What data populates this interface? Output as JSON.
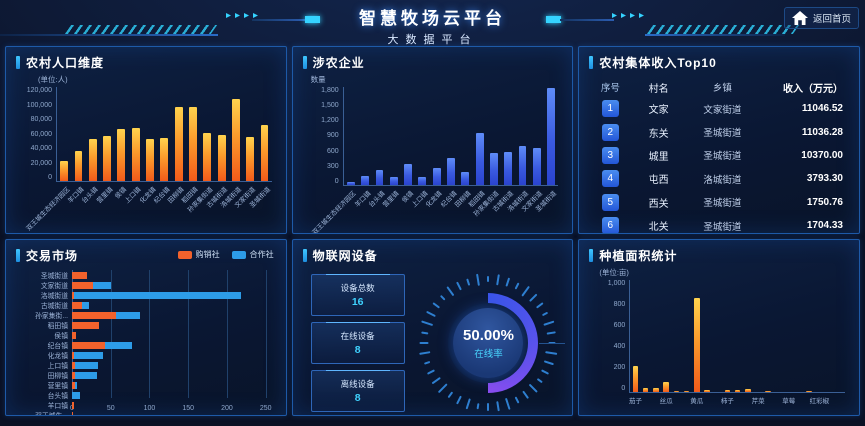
{
  "header": {
    "title": "智慧牧场云平台",
    "subtitle": "大数据平台",
    "home_label": "返回首页"
  },
  "panels": {
    "population": {
      "title": "农村人口维度",
      "unit": "(单位:人)"
    },
    "enterprises": {
      "title": "涉农企业",
      "y_label": "数量"
    },
    "income": {
      "title": "农村集体收入Top10",
      "columns": [
        "序号",
        "村名",
        "乡镇",
        "收入（万元）"
      ],
      "rows": [
        [
          "1",
          "文家",
          "文家街道",
          "11046.52"
        ],
        [
          "2",
          "东关",
          "圣城街道",
          "11036.28"
        ],
        [
          "3",
          "城里",
          "圣城街道",
          "10370.00"
        ],
        [
          "4",
          "屯西",
          "洛城街道",
          "3793.30"
        ],
        [
          "5",
          "西关",
          "圣城街道",
          "1750.76"
        ],
        [
          "6",
          "北关",
          "圣城街道",
          "1704.33"
        ]
      ]
    },
    "market": {
      "title": "交易市场"
    },
    "iot": {
      "title": "物联网设备",
      "stats": [
        {
          "label": "设备总数",
          "value": "16"
        },
        {
          "label": "在线设备",
          "value": "8"
        },
        {
          "label": "离线设备",
          "value": "8"
        }
      ],
      "gauge": {
        "percent": "50.00%",
        "label": "在线率"
      }
    },
    "planting": {
      "title": "种植面积统计",
      "unit": "(单位:亩)"
    }
  },
  "chart_data": [
    {
      "id": "population",
      "type": "bar",
      "title": "农村人口维度",
      "ylabel": "单位:人",
      "categories": [
        "双王城生态经济园区",
        "羊口镇",
        "台头镇",
        "营里镇",
        "侯镇",
        "上口镇",
        "化龙镇",
        "纪台镇",
        "田柳镇",
        "稻田镇",
        "孙家集街道",
        "古城街道",
        "洛城街道",
        "文家街道",
        "圣城街道"
      ],
      "values": [
        25000,
        38000,
        54000,
        58000,
        67000,
        68000,
        54000,
        55000,
        95000,
        95000,
        61000,
        59000,
        105000,
        56000,
        71000
      ],
      "ylim": [
        0,
        120000
      ],
      "yticks": [
        "120,000",
        "100,000",
        "80,000",
        "60,000",
        "40,000",
        "20,000",
        "0"
      ]
    },
    {
      "id": "enterprises",
      "type": "bar",
      "title": "涉农企业",
      "ylabel": "数量",
      "categories": [
        "双王城生态经济园区",
        "羊口镇",
        "台头镇",
        "营里镇",
        "侯镇",
        "上口镇",
        "化龙镇",
        "纪台镇",
        "田柳镇",
        "稻田镇",
        "孙家集街道",
        "古城街道",
        "洛城街道",
        "文家街道",
        "圣城街道"
      ],
      "values": [
        60,
        160,
        270,
        140,
        380,
        140,
        310,
        490,
        240,
        950,
        590,
        610,
        720,
        680,
        1780
      ],
      "ylim": [
        0,
        1800
      ],
      "yticks": [
        "1,800",
        "1,500",
        "1,200",
        "900",
        "600",
        "300",
        "0"
      ]
    },
    {
      "id": "market",
      "type": "bar-horizontal-stacked",
      "title": "交易市场",
      "categories": [
        "圣城街道",
        "文家街道",
        "洛城街道",
        "古城街道",
        "孙家集街...",
        "稻田镇",
        "侯镇",
        "纪台镇",
        "化龙镇",
        "上口镇",
        "田柳镇",
        "营里镇",
        "台头镇",
        "羊口镇",
        "双王城生..."
      ],
      "series": [
        {
          "name": "购销社",
          "color": "#f2622c",
          "values": [
            20,
            27,
            2,
            13,
            57,
            35,
            5,
            43,
            3,
            4,
            4,
            4,
            0,
            3,
            1
          ]
        },
        {
          "name": "合作社",
          "color": "#2d9ce8",
          "values": [
            0,
            23,
            216,
            9,
            31,
            0,
            0,
            35,
            37,
            30,
            28,
            2,
            10,
            0,
            0
          ]
        }
      ],
      "xlim": [
        0,
        250
      ],
      "xticks": [
        "0",
        "50",
        "100",
        "150",
        "200",
        "250"
      ],
      "legend_position": "top-right"
    },
    {
      "id": "planting",
      "type": "bar",
      "title": "种植面积统计",
      "ylabel": "单位:亩",
      "categories": [
        "茄子",
        "",
        "",
        "丝瓜",
        "",
        "",
        "黄瓜",
        "",
        "",
        "柿子",
        "",
        "",
        "芹菜",
        "",
        "",
        "草莓",
        "",
        "",
        "红彩椒",
        "",
        ""
      ],
      "values": [
        230,
        38,
        35,
        90,
        5,
        8,
        840,
        18,
        0,
        18,
        22,
        25,
        0,
        8,
        0,
        0,
        0,
        3,
        0,
        0,
        0
      ],
      "ylim": [
        0,
        1000
      ],
      "yticks": [
        "1,000",
        "800",
        "600",
        "400",
        "200",
        "0"
      ]
    },
    {
      "id": "iot_gauge",
      "type": "gauge",
      "value": 50,
      "max": 100,
      "center_value": "50.00%",
      "center_label": "在线率"
    }
  ],
  "colors": {
    "accent_cyan": "#35d3ff",
    "bar_orange_top": "#ffd34e",
    "bar_orange_bottom": "#f25a1a",
    "bar_blue_top": "#5f8cf8",
    "bar_blue_bottom": "#2a43cf",
    "market_orange": "#f2622c",
    "market_blue": "#2d9ce8",
    "panel_border": "#1e5aa8",
    "background": "#0a1124"
  }
}
